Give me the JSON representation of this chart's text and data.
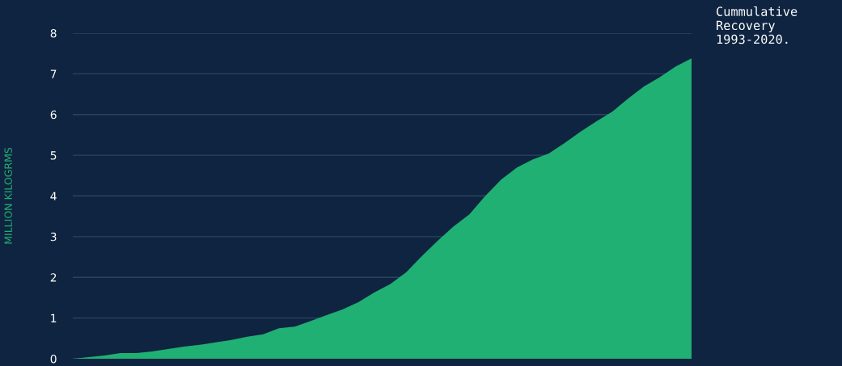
{
  "chart_data": {
    "type": "area",
    "title": "Cummulative\nRecovery\n1993-2020.",
    "ylabel": "MILLION KILOGRMS",
    "categories": [
      null,
      null,
      null,
      null,
      null,
      null,
      null,
      null,
      null,
      null,
      null,
      null,
      null,
      null,
      null,
      null,
      null,
      null,
      null,
      null,
      null,
      null,
      null,
      null,
      null,
      null,
      null,
      null,
      null,
      null,
      null,
      null,
      null,
      null,
      null,
      null,
      null,
      null,
      null,
      null
    ],
    "series": [
      {
        "color": "#20b073",
        "values": [
          0,
          0.04,
          0.08,
          0.14,
          0.14,
          0.18,
          0.24,
          0.3,
          0.34,
          0.4,
          0.46,
          0.54,
          0.6,
          0.75,
          0.79,
          0.93,
          1.07,
          1.21,
          1.39,
          1.63,
          1.83,
          2.12,
          2.52,
          2.9,
          3.25,
          3.55,
          4.0,
          4.4,
          4.7,
          4.9,
          5.04,
          5.3,
          5.58,
          5.83,
          6.07,
          6.39,
          6.69,
          6.92,
          7.18,
          7.38
        ]
      }
    ],
    "ylim": [
      0,
      8
    ],
    "yticks": [
      0,
      1,
      2,
      3,
      4,
      5,
      6,
      7,
      8
    ],
    "grid": "y",
    "tick_labels": "y"
  }
}
